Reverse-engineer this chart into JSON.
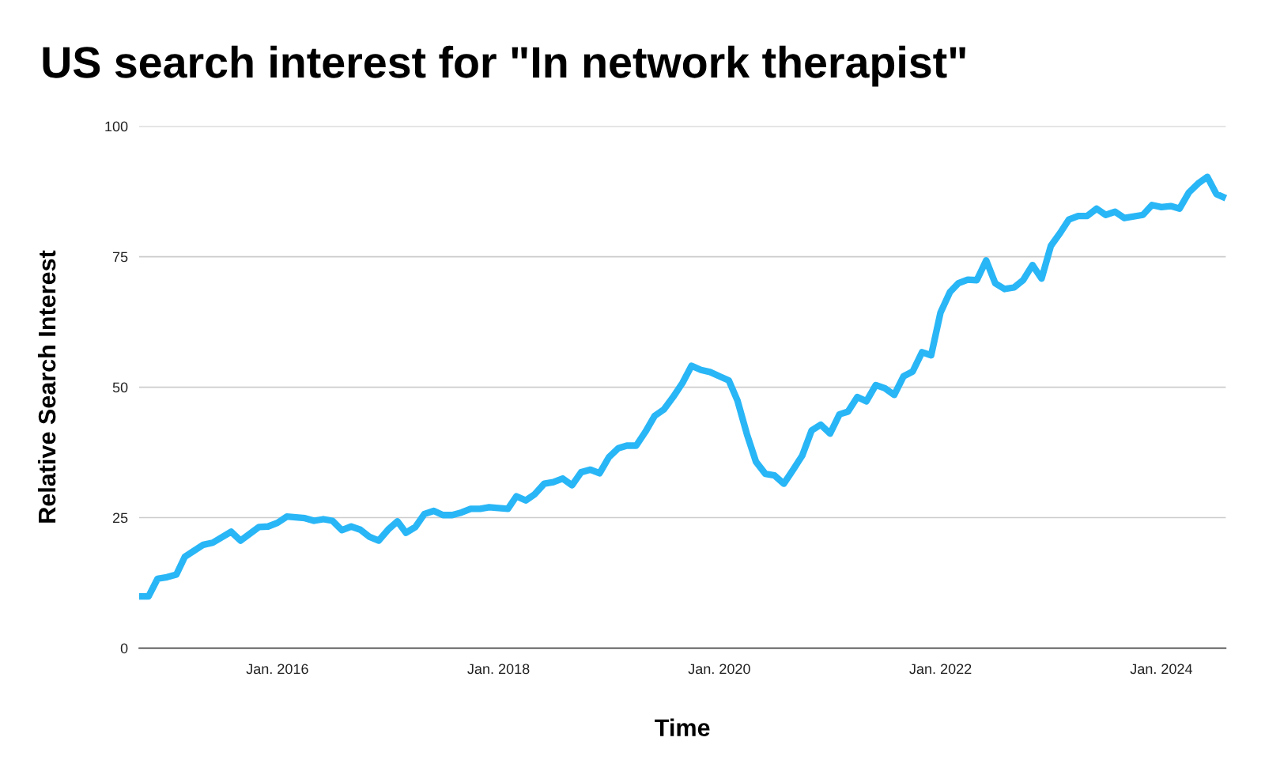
{
  "chart_data": {
    "type": "line",
    "title": "US search interest for \"In network therapist\"",
    "xlabel": "Time",
    "ylabel": "Relative Search Interest",
    "x": [
      "2014-10",
      "2014-11",
      "2014-12",
      "2015-01",
      "2015-02",
      "2015-03",
      "2015-05",
      "2015-06",
      "2015-08",
      "2015-09",
      "2015-11",
      "2015-12",
      "2016-01",
      "2016-02",
      "2016-04",
      "2016-05",
      "2016-06",
      "2016-07",
      "2016-08",
      "2016-09",
      "2016-10",
      "2016-11",
      "2016-12",
      "2017-01",
      "2017-02",
      "2017-03",
      "2017-04",
      "2017-05",
      "2017-06",
      "2017-07",
      "2017-08",
      "2017-09",
      "2017-10",
      "2017-11",
      "2017-12",
      "2018-02",
      "2018-03",
      "2018-04",
      "2018-05",
      "2018-06",
      "2018-07",
      "2018-08",
      "2018-09",
      "2018-10",
      "2018-11",
      "2018-12",
      "2019-01",
      "2019-02",
      "2019-03",
      "2019-04",
      "2019-05",
      "2019-06",
      "2019-07",
      "2019-08",
      "2019-09",
      "2019-10",
      "2019-11",
      "2019-12",
      "2020-01",
      "2020-02",
      "2020-03",
      "2020-04",
      "2020-05",
      "2020-06",
      "2020-07",
      "2020-08",
      "2020-09",
      "2020-10",
      "2020-11",
      "2020-12",
      "2021-01",
      "2021-02",
      "2021-03",
      "2021-04",
      "2021-05",
      "2021-06",
      "2021-07",
      "2021-08",
      "2021-09",
      "2021-10",
      "2021-11",
      "2021-12",
      "2022-01",
      "2022-02",
      "2022-03",
      "2022-04",
      "2022-05",
      "2022-06",
      "2022-07",
      "2022-08",
      "2022-09",
      "2022-10",
      "2022-11",
      "2022-12",
      "2023-01",
      "2023-02",
      "2023-03",
      "2023-04",
      "2023-05",
      "2023-06",
      "2023-07",
      "2023-08",
      "2023-09",
      "2023-11",
      "2023-12",
      "2024-01",
      "2024-02",
      "2024-03",
      "2024-04",
      "2024-05",
      "2024-06",
      "2024-07",
      "2024-08"
    ],
    "series": [
      {
        "color": "#29b6f6",
        "values": [
          9.9,
          9.9,
          13.3,
          13.6,
          14.1,
          17.5,
          19.8,
          20.2,
          22.3,
          20.6,
          23.2,
          23.3,
          24,
          25.2,
          24.9,
          24.4,
          24.7,
          24.4,
          22.6,
          23.3,
          22.7,
          21.3,
          20.6,
          22.7,
          24.3,
          22.1,
          23.2,
          25.7,
          26.3,
          25.5,
          25.5,
          26,
          26.7,
          26.7,
          27,
          26.7,
          29.1,
          28.3,
          29.5,
          31.5,
          31.8,
          32.5,
          31.2,
          33.7,
          34.2,
          33.5,
          36.6,
          38.3,
          38.8,
          38.8,
          41.4,
          44.5,
          45.7,
          48.1,
          50.8,
          54.1,
          53.3,
          52.9,
          52.1,
          51.3,
          47.4,
          41,
          35.7,
          33.4,
          33.1,
          31.5,
          34.2,
          36.9,
          41.7,
          42.8,
          41.1,
          44.8,
          45.3,
          48.1,
          47.3,
          50.4,
          49.8,
          48.5,
          52.1,
          53,
          56.7,
          56.1,
          64.3,
          68.2,
          69.9,
          70.6,
          70.5,
          74.3,
          69.9,
          68.8,
          69.1,
          70.5,
          73.4,
          70.8,
          77.1,
          79.6,
          82.1,
          82.8,
          82.8,
          84.2,
          83,
          83.6,
          82.4,
          83,
          84.9,
          84.5,
          84.7,
          84.2,
          87.3,
          89,
          90.3,
          87,
          86.2
        ]
      }
    ],
    "xlim": [
      "2014-10",
      "2024-08"
    ],
    "xticks": [
      {
        "value": "2016-01",
        "label": "Jan. 2016"
      },
      {
        "value": "2018-01",
        "label": "Jan. 2018"
      },
      {
        "value": "2020-01",
        "label": "Jan. 2020"
      },
      {
        "value": "2022-01",
        "label": "Jan. 2022"
      },
      {
        "value": "2024-01",
        "label": "Jan. 2024"
      }
    ],
    "ylim": [
      0,
      100
    ],
    "yticks": [
      0,
      25,
      50,
      75,
      100
    ],
    "grid": "y",
    "legend": false,
    "marker": "none",
    "line_style": "solid"
  }
}
